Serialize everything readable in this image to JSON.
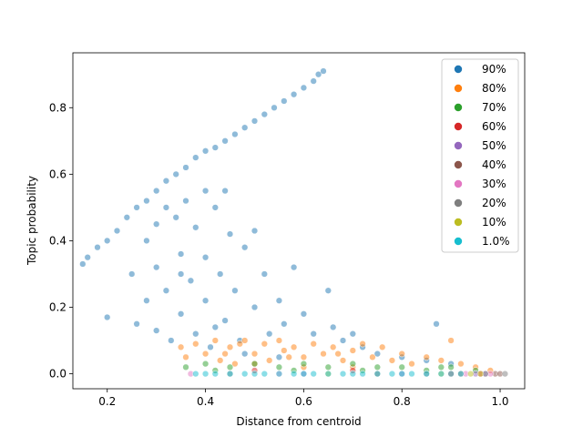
{
  "chart_data": {
    "type": "scatter",
    "title": "",
    "xlabel": "Distance from centroid",
    "ylabel": "Topic probability",
    "xlim": [
      0.13,
      1.05
    ],
    "ylim": [
      -0.045,
      0.965
    ],
    "xticks": [
      0.2,
      0.4,
      0.6,
      0.8,
      1.0
    ],
    "xtick_labels": [
      "0.2",
      "0.4",
      "0.6",
      "0.8",
      "1.0"
    ],
    "yticks": [
      0.0,
      0.2,
      0.4,
      0.6,
      0.8
    ],
    "ytick_labels": [
      "0.0",
      "0.2",
      "0.4",
      "0.6",
      "0.8"
    ],
    "grid": false,
    "legend_position": "top-right",
    "point_opacity": 0.5,
    "series": [
      {
        "name": "90%",
        "color": "#1f77b4",
        "points": [
          [
            0.15,
            0.33
          ],
          [
            0.16,
            0.35
          ],
          [
            0.18,
            0.38
          ],
          [
            0.2,
            0.17
          ],
          [
            0.2,
            0.4
          ],
          [
            0.22,
            0.43
          ],
          [
            0.24,
            0.47
          ],
          [
            0.25,
            0.3
          ],
          [
            0.26,
            0.15
          ],
          [
            0.26,
            0.5
          ],
          [
            0.28,
            0.52
          ],
          [
            0.28,
            0.4
          ],
          [
            0.28,
            0.22
          ],
          [
            0.3,
            0.55
          ],
          [
            0.3,
            0.45
          ],
          [
            0.3,
            0.32
          ],
          [
            0.3,
            0.13
          ],
          [
            0.32,
            0.58
          ],
          [
            0.32,
            0.5
          ],
          [
            0.32,
            0.25
          ],
          [
            0.33,
            0.1
          ],
          [
            0.34,
            0.6
          ],
          [
            0.34,
            0.47
          ],
          [
            0.35,
            0.36
          ],
          [
            0.35,
            0.18
          ],
          [
            0.36,
            0.62
          ],
          [
            0.36,
            0.52
          ],
          [
            0.37,
            0.28
          ],
          [
            0.38,
            0.65
          ],
          [
            0.38,
            0.44
          ],
          [
            0.38,
            0.12
          ],
          [
            0.4,
            0.67
          ],
          [
            0.4,
            0.55
          ],
          [
            0.4,
            0.35
          ],
          [
            0.4,
            0.22
          ],
          [
            0.41,
            0.08
          ],
          [
            0.42,
            0.68
          ],
          [
            0.42,
            0.5
          ],
          [
            0.43,
            0.3
          ],
          [
            0.44,
            0.7
          ],
          [
            0.44,
            0.16
          ],
          [
            0.45,
            0.42
          ],
          [
            0.46,
            0.72
          ],
          [
            0.46,
            0.25
          ],
          [
            0.47,
            0.1
          ],
          [
            0.48,
            0.74
          ],
          [
            0.48,
            0.38
          ],
          [
            0.5,
            0.76
          ],
          [
            0.5,
            0.2
          ],
          [
            0.5,
            0.43
          ],
          [
            0.52,
            0.78
          ],
          [
            0.52,
            0.3
          ],
          [
            0.53,
            0.12
          ],
          [
            0.54,
            0.8
          ],
          [
            0.55,
            0.22
          ],
          [
            0.56,
            0.82
          ],
          [
            0.56,
            0.15
          ],
          [
            0.58,
            0.32
          ],
          [
            0.58,
            0.84
          ],
          [
            0.6,
            0.86
          ],
          [
            0.6,
            0.18
          ],
          [
            0.62,
            0.88
          ],
          [
            0.62,
            0.12
          ],
          [
            0.63,
            0.9
          ],
          [
            0.64,
            0.91
          ],
          [
            0.65,
            0.25
          ],
          [
            0.66,
            0.14
          ],
          [
            0.68,
            0.1
          ],
          [
            0.7,
            0.12
          ],
          [
            0.72,
            0.08
          ],
          [
            0.75,
            0.06
          ],
          [
            0.8,
            0.05
          ],
          [
            0.85,
            0.04
          ],
          [
            0.87,
            0.15
          ],
          [
            0.9,
            0.03
          ],
          [
            0.35,
            0.3
          ],
          [
            0.42,
            0.14
          ],
          [
            0.48,
            0.06
          ],
          [
            0.55,
            0.05
          ],
          [
            0.44,
            0.55
          ]
        ]
      },
      {
        "name": "80%",
        "color": "#ff7f0e",
        "points": [
          [
            0.35,
            0.08
          ],
          [
            0.36,
            0.05
          ],
          [
            0.38,
            0.09
          ],
          [
            0.4,
            0.06
          ],
          [
            0.42,
            0.1
          ],
          [
            0.43,
            0.04
          ],
          [
            0.45,
            0.08
          ],
          [
            0.46,
            0.03
          ],
          [
            0.48,
            0.1
          ],
          [
            0.5,
            0.06
          ],
          [
            0.52,
            0.09
          ],
          [
            0.53,
            0.04
          ],
          [
            0.55,
            0.1
          ],
          [
            0.56,
            0.07
          ],
          [
            0.58,
            0.08
          ],
          [
            0.6,
            0.05
          ],
          [
            0.62,
            0.09
          ],
          [
            0.64,
            0.06
          ],
          [
            0.66,
            0.08
          ],
          [
            0.68,
            0.04
          ],
          [
            0.7,
            0.07
          ],
          [
            0.72,
            0.09
          ],
          [
            0.74,
            0.05
          ],
          [
            0.76,
            0.08
          ],
          [
            0.78,
            0.04
          ],
          [
            0.8,
            0.06
          ],
          [
            0.82,
            0.03
          ],
          [
            0.85,
            0.05
          ],
          [
            0.88,
            0.04
          ],
          [
            0.9,
            0.1
          ],
          [
            0.92,
            0.03
          ],
          [
            0.95,
            0.02
          ],
          [
            0.98,
            0.01
          ],
          [
            0.44,
            0.06
          ],
          [
            0.5,
            0.03
          ],
          [
            0.6,
            0.02
          ],
          [
            0.7,
            0.02
          ],
          [
            0.47,
            0.09
          ],
          [
            0.57,
            0.05
          ],
          [
            0.67,
            0.06
          ]
        ]
      },
      {
        "name": "70%",
        "color": "#2ca02c",
        "points": [
          [
            0.36,
            0.02
          ],
          [
            0.4,
            0.03
          ],
          [
            0.45,
            0.02
          ],
          [
            0.5,
            0.03
          ],
          [
            0.55,
            0.02
          ],
          [
            0.6,
            0.03
          ],
          [
            0.65,
            0.02
          ],
          [
            0.7,
            0.03
          ],
          [
            0.75,
            0.02
          ],
          [
            0.8,
            0.02
          ],
          [
            0.85,
            0.01
          ],
          [
            0.9,
            0.02
          ],
          [
            0.95,
            0.01
          ],
          [
            0.42,
            0.01
          ],
          [
            0.58,
            0.01
          ],
          [
            0.72,
            0.01
          ],
          [
            0.88,
            0.02
          ]
        ]
      },
      {
        "name": "60%",
        "color": "#d62728",
        "points": [
          [
            0.5,
            0.01
          ],
          [
            0.7,
            0.01
          ],
          [
            0.9,
            0.0
          ],
          [
            0.96,
            0.0
          ]
        ]
      },
      {
        "name": "50%",
        "color": "#9467bd",
        "points": [
          [
            0.6,
            0.0
          ],
          [
            0.8,
            0.0
          ],
          [
            0.95,
            0.0
          ],
          [
            0.97,
            0.0
          ]
        ]
      },
      {
        "name": "40%",
        "color": "#8c564b",
        "points": [
          [
            0.75,
            0.0
          ],
          [
            0.92,
            0.0
          ],
          [
            0.99,
            0.0
          ],
          [
            1.0,
            0.0
          ]
        ]
      },
      {
        "name": "30%",
        "color": "#e377c2",
        "points": [
          [
            0.37,
            0.0
          ],
          [
            0.55,
            0.0
          ],
          [
            0.93,
            0.0
          ],
          [
            0.98,
            0.0
          ]
        ]
      },
      {
        "name": "20%",
        "color": "#7f7f7f",
        "points": [
          [
            0.45,
            0.0
          ],
          [
            0.85,
            0.0
          ],
          [
            0.97,
            0.0
          ],
          [
            1.01,
            0.0
          ]
        ]
      },
      {
        "name": "10%",
        "color": "#bcbd22",
        "points": [
          [
            0.65,
            0.0
          ],
          [
            0.88,
            0.0
          ],
          [
            0.94,
            0.0
          ],
          [
            0.96,
            0.0
          ]
        ]
      },
      {
        "name": "1.0%",
        "color": "#17becf",
        "points": [
          [
            0.38,
            0.0
          ],
          [
            0.4,
            0.0
          ],
          [
            0.42,
            0.0
          ],
          [
            0.45,
            0.0
          ],
          [
            0.48,
            0.0
          ],
          [
            0.5,
            0.0
          ],
          [
            0.52,
            0.0
          ],
          [
            0.55,
            0.0
          ],
          [
            0.58,
            0.0
          ],
          [
            0.6,
            0.0
          ],
          [
            0.62,
            0.0
          ],
          [
            0.65,
            0.0
          ],
          [
            0.68,
            0.0
          ],
          [
            0.7,
            0.0
          ],
          [
            0.72,
            0.0
          ],
          [
            0.75,
            0.0
          ],
          [
            0.78,
            0.0
          ],
          [
            0.8,
            0.0
          ],
          [
            0.82,
            0.0
          ],
          [
            0.85,
            0.0
          ],
          [
            0.88,
            0.0
          ],
          [
            0.9,
            0.0
          ],
          [
            0.92,
            0.0
          ]
        ]
      }
    ]
  }
}
